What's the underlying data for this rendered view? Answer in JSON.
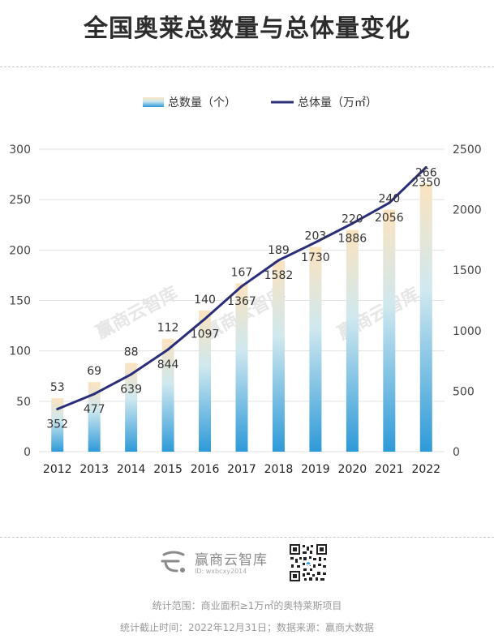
{
  "header": {
    "title": "全国奥莱总数量与总体量变化"
  },
  "chart_data": {
    "type": "bar+line",
    "categories": [
      "2012",
      "2013",
      "2014",
      "2015",
      "2016",
      "2017",
      "2018",
      "2019",
      "2020",
      "2021",
      "2022"
    ],
    "series": [
      {
        "name": "总数量（个）",
        "type": "bar",
        "axis": "left",
        "values": [
          53,
          69,
          88,
          112,
          140,
          167,
          189,
          203,
          220,
          240,
          266
        ]
      },
      {
        "name": "总体量（万㎡）",
        "type": "line",
        "axis": "right",
        "values": [
          352,
          477,
          639,
          844,
          1097,
          1367,
          1582,
          1730,
          1886,
          2056,
          2350
        ]
      }
    ],
    "left_axis": {
      "min": 0,
      "max": 300,
      "ticks": [
        "0",
        "50",
        "100",
        "150",
        "200",
        "250",
        "300"
      ]
    },
    "right_axis": {
      "min": 0,
      "max": 2500,
      "ticks": [
        "0",
        "500",
        "1000",
        "1500",
        "2000",
        "2500"
      ]
    },
    "legend": [
      "总数量（个）",
      "总体量（万㎡）"
    ],
    "grid": true,
    "watermark": "赢商云智库",
    "colors": {
      "bar_top": "#fbe3bf",
      "bar_mid": "#cfe8ef",
      "bar_bottom": "#2e9ad8",
      "line": "#2a2d78",
      "text": "#333333",
      "grid": "#e2e2e2"
    }
  },
  "brand": {
    "name": "赢商云智库",
    "id": "ID: wxbcxy2014"
  },
  "footer": {
    "scope": "统计范围：商业面积≥1万㎡的奥特莱斯项目",
    "source": "统计截止时间：2022年12月31日；数据来源：赢商大数据"
  }
}
